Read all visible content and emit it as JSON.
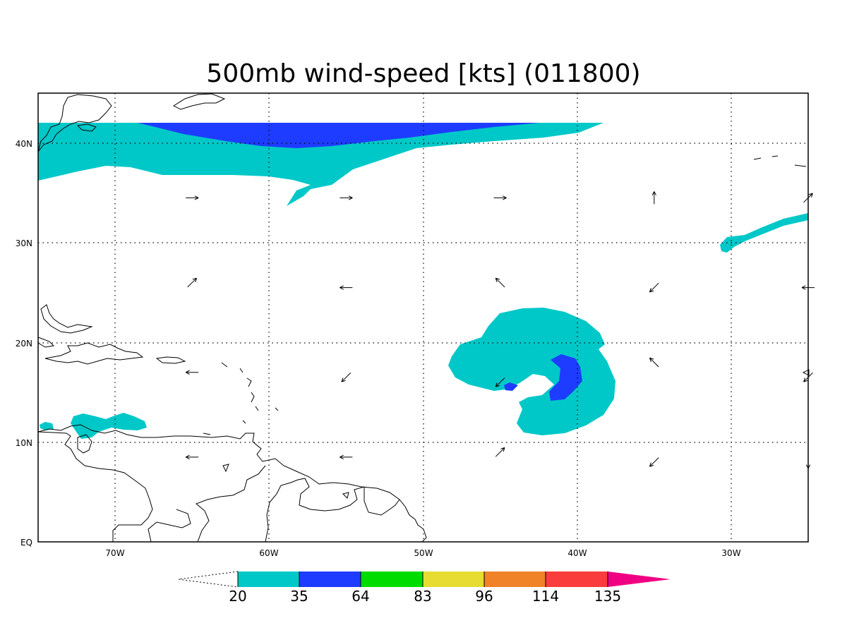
{
  "title": "500mb wind-speed [kts] (011800)",
  "axes": {
    "x_ticks": [
      "70W",
      "60W",
      "50W",
      "40W",
      "30W"
    ],
    "y_ticks": [
      "40N",
      "30N",
      "20N",
      "10N",
      "EQ"
    ]
  },
  "colorbar": {
    "levels": [
      "20",
      "35",
      "64",
      "83",
      "96",
      "114",
      "135"
    ],
    "colors": [
      "#00c8c8",
      "#1e3cff",
      "#00dc00",
      "#e6dc32",
      "#f08228",
      "#fa3c3c",
      "#f00082"
    ]
  },
  "chart_data": {
    "type": "heatmap",
    "title": "500mb wind-speed [kts] (011800)",
    "x_range_deg_lon": [
      -75,
      -25
    ],
    "y_range_deg_lat": [
      0,
      45
    ],
    "grid": true,
    "contour_levels_kts": [
      20,
      35,
      64,
      83,
      96,
      114,
      135
    ],
    "wind_vectors": [
      {
        "lon": -65,
        "lat": 34.5,
        "dir": "E"
      },
      {
        "lon": -55,
        "lat": 34.5,
        "dir": "E"
      },
      {
        "lon": -45,
        "lat": 34.5,
        "dir": "E"
      },
      {
        "lon": -35,
        "lat": 34.5,
        "dir": "N"
      },
      {
        "lon": -25,
        "lat": 34.5,
        "dir": "NE"
      },
      {
        "lon": -65,
        "lat": 26,
        "dir": "NE"
      },
      {
        "lon": -55,
        "lat": 25.5,
        "dir": "W"
      },
      {
        "lon": -45,
        "lat": 26,
        "dir": "NW"
      },
      {
        "lon": -35,
        "lat": 25.5,
        "dir": "SW"
      },
      {
        "lon": -25,
        "lat": 25.5,
        "dir": "W"
      },
      {
        "lon": -65,
        "lat": 17,
        "dir": "W"
      },
      {
        "lon": -55,
        "lat": 16.5,
        "dir": "SW"
      },
      {
        "lon": -45,
        "lat": 16,
        "dir": "SW"
      },
      {
        "lon": -35,
        "lat": 18,
        "dir": "NW"
      },
      {
        "lon": -25,
        "lat": 16.5,
        "dir": "SW"
      },
      {
        "lon": -65,
        "lat": 8.5,
        "dir": "W"
      },
      {
        "lon": -55,
        "lat": 8.5,
        "dir": "W"
      },
      {
        "lon": -45,
        "lat": 9,
        "dir": "NE"
      },
      {
        "lon": -35,
        "lat": 8,
        "dir": "SW"
      },
      {
        "lon": -25,
        "lat": 8,
        "dir": "S"
      }
    ]
  }
}
